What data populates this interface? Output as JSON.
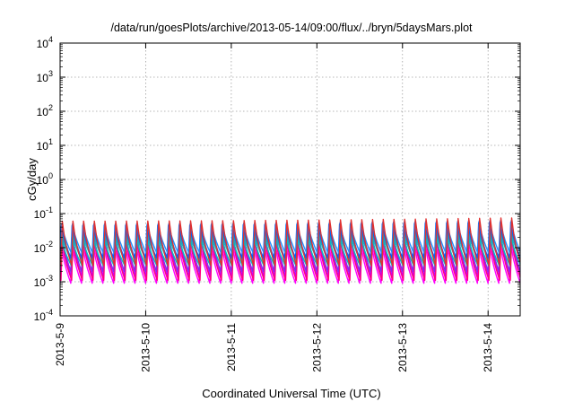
{
  "chart_data": {
    "type": "line",
    "title": "/data/run/goesPlots/archive/2013-05-14/09:00/flux/../bryn/5daysMars.plot",
    "xlabel": "Coordinated Universal Time (UTC)",
    "ylabel": "cGy/day",
    "y_scale": "log",
    "ylim": [
      0.0001,
      10000
    ],
    "xlim": [
      "2013-05-09T00:00",
      "2013-05-14T09:00"
    ],
    "grid": true,
    "legend": "none",
    "y_ticks": [
      {
        "base": "10",
        "exp": "-4"
      },
      {
        "base": "10",
        "exp": "-3"
      },
      {
        "base": "10",
        "exp": "-2"
      },
      {
        "base": "10",
        "exp": "-1"
      },
      {
        "base": "10",
        "exp": "0"
      },
      {
        "base": "10",
        "exp": "1"
      },
      {
        "base": "10",
        "exp": "2"
      },
      {
        "base": "10",
        "exp": "3"
      },
      {
        "base": "10",
        "exp": "4"
      }
    ],
    "x_ticks": [
      "2013-5-9",
      "2013-5-10",
      "2013-5-11",
      "2013-5-12",
      "2013-5-13",
      "2013-5-14"
    ],
    "cycle_period_hours": 3,
    "series": [
      {
        "color": "#ff00ff",
        "peak": 0.012,
        "trough": 0.0009
      },
      {
        "color": "#c000ff",
        "peak": 0.02,
        "trough": 0.0014
      },
      {
        "color": "#ff0080",
        "peak": 0.015,
        "trough": 0.0011
      },
      {
        "color": "#8a2be2",
        "peak": 0.03,
        "trough": 0.002
      },
      {
        "color": "#00c0c0",
        "peak": 0.018,
        "trough": 0.003
      },
      {
        "color": "#20b2aa",
        "peak": 0.025,
        "trough": 0.004
      },
      {
        "color": "#0060ff",
        "peak": 0.045,
        "trough": 0.005
      },
      {
        "color": "#1e90ff",
        "peak": 0.05,
        "trough": 0.007
      },
      {
        "color": "#e03030",
        "peak": 0.06,
        "trough": 0.003
      }
    ]
  }
}
